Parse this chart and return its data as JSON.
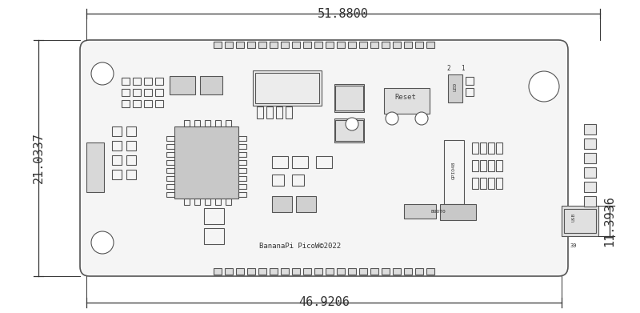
{
  "bg_color": "#ffffff",
  "line_color": "#555555",
  "dim_color": "#333333",
  "dim_top": "51.8800",
  "dim_bottom": "46.9206",
  "dim_left": "21.0337",
  "dim_right": "11.3936",
  "font_family": "monospace",
  "dim_fontsize": 11,
  "board_fc": "#f5f5f5",
  "pad_fc": "#dddddd",
  "chip_fc": "#c8c8c8",
  "comp_fc": "#d0d0d0",
  "usb_fc": "#e0e0e0"
}
